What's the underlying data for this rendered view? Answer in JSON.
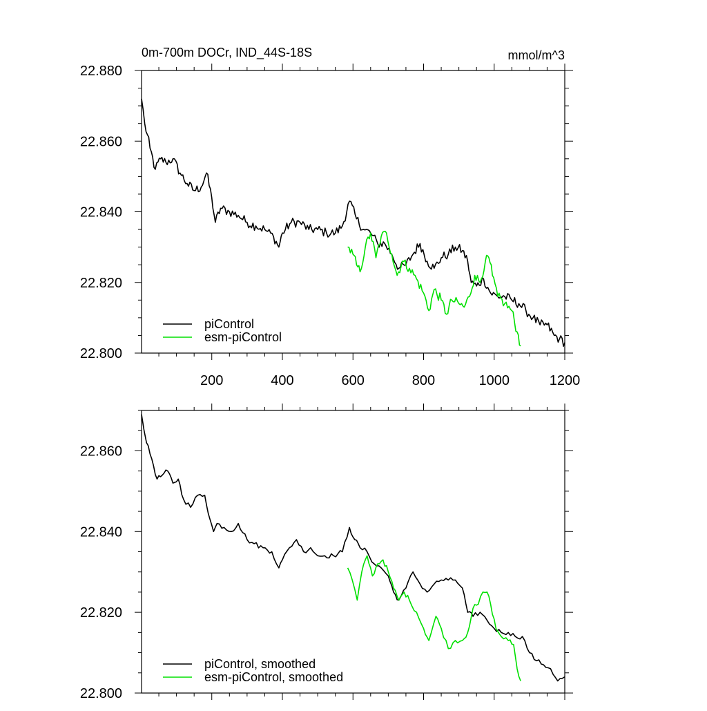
{
  "chart_data": [
    {
      "type": "line",
      "title": "0m-700m DOCr, IND_44S-18S",
      "units": "mmol/m^3",
      "xlim": [
        1,
        1200
      ],
      "ylim": [
        22.8,
        22.88
      ],
      "x_ticks": [
        200,
        400,
        600,
        800,
        1000,
        1200
      ],
      "x_tick_labels": [
        "200",
        "400",
        "600",
        "800",
        "1000",
        "1200"
      ],
      "y_ticks": [
        22.8,
        22.82,
        22.84,
        22.86,
        22.88
      ],
      "y_tick_labels": [
        "22.800",
        "22.820",
        "22.840",
        "22.860",
        "22.880"
      ],
      "legend_position": "bottom-left",
      "series": [
        {
          "name": "piControl",
          "color": "#000000",
          "x": [
            1,
            10,
            25,
            40,
            55,
            70,
            90,
            110,
            130,
            150,
            170,
            185,
            200,
            210,
            225,
            250,
            275,
            300,
            325,
            350,
            375,
            390,
            400,
            425,
            450,
            475,
            500,
            525,
            550,
            570,
            590,
            610,
            630,
            650,
            670,
            690,
            710,
            730,
            750,
            770,
            790,
            810,
            830,
            850,
            870,
            890,
            910,
            925,
            935,
            950,
            970,
            990,
            1010,
            1030,
            1050,
            1070,
            1090,
            1110,
            1130,
            1150,
            1170,
            1185,
            1200
          ],
          "values": [
            22.872,
            22.865,
            22.858,
            22.852,
            22.855,
            22.854,
            22.855,
            22.851,
            22.848,
            22.846,
            22.847,
            22.851,
            22.844,
            22.837,
            22.841,
            22.84,
            22.839,
            22.837,
            22.836,
            22.835,
            22.833,
            22.83,
            22.834,
            22.837,
            22.837,
            22.835,
            22.835,
            22.834,
            22.834,
            22.836,
            22.843,
            22.838,
            22.835,
            22.834,
            22.831,
            22.831,
            22.828,
            22.824,
            22.825,
            22.828,
            22.831,
            22.826,
            22.824,
            22.827,
            22.828,
            22.83,
            22.829,
            22.826,
            22.82,
            22.819,
            22.821,
            22.817,
            22.816,
            22.816,
            22.815,
            22.814,
            22.812,
            22.81,
            22.808,
            22.808,
            22.805,
            22.804,
            22.803
          ]
        },
        {
          "name": "esm-piControl",
          "color": "#00e000",
          "x": [
            585,
            600,
            610,
            620,
            635,
            650,
            665,
            680,
            695,
            710,
            725,
            740,
            760,
            780,
            800,
            815,
            830,
            850,
            865,
            880,
            900,
            915,
            930,
            945,
            960,
            975,
            985,
            995,
            1010,
            1030,
            1050,
            1065,
            1075
          ],
          "values": [
            22.83,
            22.828,
            22.825,
            22.823,
            22.83,
            22.834,
            22.827,
            22.833,
            22.834,
            22.828,
            22.822,
            22.826,
            22.824,
            22.821,
            22.817,
            22.812,
            22.818,
            22.815,
            22.811,
            22.815,
            22.814,
            22.813,
            22.816,
            22.822,
            22.82,
            22.826,
            22.827,
            22.822,
            22.816,
            22.814,
            22.812,
            22.806,
            22.802
          ]
        }
      ]
    },
    {
      "type": "line",
      "xlim": [
        1,
        1200
      ],
      "ylim": [
        22.8,
        22.87
      ],
      "y_ticks": [
        22.8,
        22.82,
        22.84,
        22.86
      ],
      "y_tick_labels": [
        "22.800",
        "22.820",
        "22.840",
        "22.860"
      ],
      "legend_position": "bottom-left",
      "series": [
        {
          "name": "piControl, smoothed",
          "color": "#000000",
          "x": [
            1,
            15,
            30,
            45,
            60,
            75,
            90,
            105,
            120,
            140,
            160,
            180,
            195,
            205,
            215,
            235,
            255,
            275,
            300,
            320,
            345,
            370,
            390,
            400,
            420,
            440,
            460,
            480,
            500,
            520,
            545,
            570,
            590,
            605,
            620,
            640,
            660,
            680,
            700,
            715,
            730,
            750,
            770,
            790,
            810,
            830,
            850,
            870,
            890,
            910,
            925,
            940,
            960,
            980,
            1000,
            1020,
            1040,
            1060,
            1080,
            1100,
            1120,
            1140,
            1160,
            1180,
            1200
          ],
          "values": [
            22.869,
            22.862,
            22.858,
            22.853,
            22.854,
            22.855,
            22.852,
            22.853,
            22.848,
            22.846,
            22.849,
            22.849,
            22.843,
            22.84,
            22.842,
            22.841,
            22.84,
            22.842,
            22.838,
            22.837,
            22.836,
            22.835,
            22.831,
            22.833,
            22.836,
            22.838,
            22.835,
            22.836,
            22.834,
            22.834,
            22.834,
            22.835,
            22.841,
            22.838,
            22.836,
            22.835,
            22.832,
            22.831,
            22.829,
            22.825,
            22.823,
            22.826,
            22.83,
            22.827,
            22.825,
            22.827,
            22.828,
            22.828,
            22.828,
            22.826,
            22.82,
            22.819,
            22.82,
            22.818,
            22.816,
            22.815,
            22.815,
            22.814,
            22.814,
            22.81,
            22.808,
            22.807,
            22.806,
            22.803,
            22.804
          ]
        },
        {
          "name": "esm-piControl, smoothed",
          "color": "#00e000",
          "x": [
            585,
            598,
            612,
            625,
            640,
            655,
            670,
            685,
            700,
            715,
            730,
            745,
            760,
            780,
            800,
            815,
            835,
            850,
            870,
            890,
            910,
            925,
            940,
            955,
            968,
            980,
            990,
            1005,
            1020,
            1040,
            1055,
            1065,
            1075
          ],
          "values": [
            22.831,
            22.828,
            22.823,
            22.83,
            22.834,
            22.829,
            22.832,
            22.833,
            22.83,
            22.826,
            22.823,
            22.825,
            22.823,
            22.82,
            22.816,
            22.813,
            22.819,
            22.816,
            22.811,
            22.813,
            22.813,
            22.815,
            22.821,
            22.822,
            22.825,
            22.825,
            22.822,
            22.816,
            22.814,
            22.813,
            22.812,
            22.806,
            22.803
          ]
        }
      ]
    }
  ]
}
